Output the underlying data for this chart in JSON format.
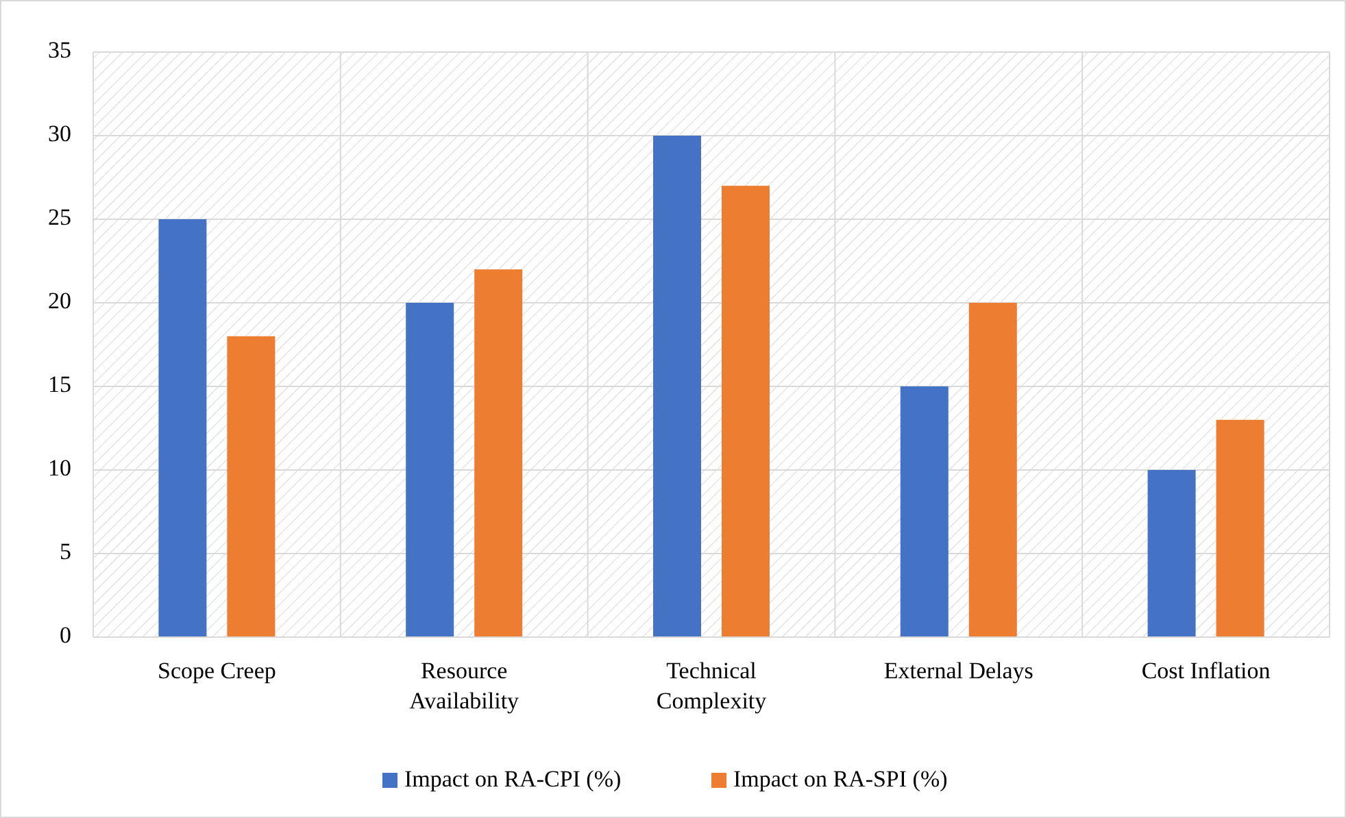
{
  "chart_data": {
    "type": "bar",
    "categories": [
      "Scope Creep",
      "Resource Availability",
      "Technical Complexity",
      "External Delays",
      "Cost Inflation"
    ],
    "series": [
      {
        "name": "Impact on RA-CPI (%)",
        "color": "#4472c4",
        "values": [
          25,
          20,
          30,
          15,
          10
        ]
      },
      {
        "name": "Impact on RA-SPI (%)",
        "color": "#ed7d31",
        "values": [
          18,
          22,
          27,
          20,
          13
        ]
      }
    ],
    "ylim": [
      0,
      35
    ],
    "yticks": [
      0,
      5,
      10,
      15,
      20,
      25,
      30,
      35
    ],
    "grid": true,
    "legend": "bottom"
  }
}
